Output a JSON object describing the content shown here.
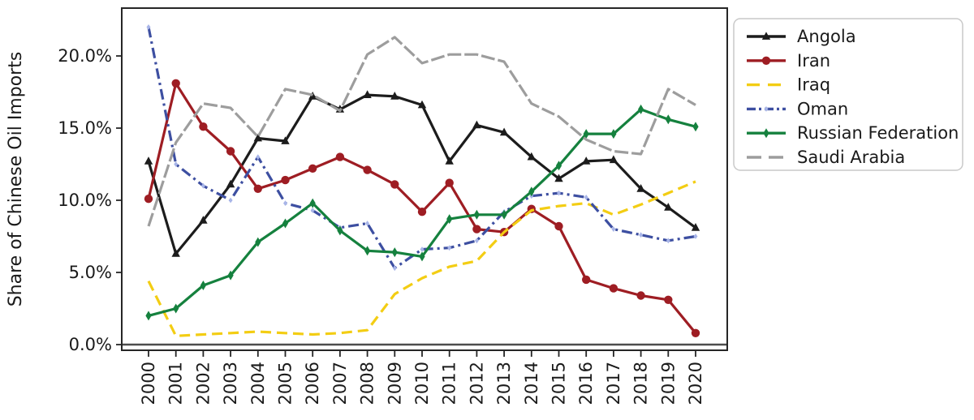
{
  "chart_data": {
    "type": "line",
    "title": "",
    "xlabel": "",
    "ylabel": "Share of Chinese Oil Imports",
    "x": [
      2000,
      2001,
      2002,
      2003,
      2004,
      2005,
      2006,
      2007,
      2008,
      2009,
      2010,
      2011,
      2012,
      2013,
      2014,
      2015,
      2016,
      2017,
      2018,
      2019,
      2020
    ],
    "ylim": [
      0,
      22.6
    ],
    "yticks": [
      0,
      5,
      10,
      15,
      20
    ],
    "y_tick_labels": [
      "0.0%",
      "5.0%",
      "10.0%",
      "15.0%",
      "20.0%"
    ],
    "grid": false,
    "zero_line": true,
    "legend_position": "outside-right",
    "series": [
      {
        "name": "Angola",
        "color": "#1c1c1c",
        "marker": "triangle",
        "dash": "solid",
        "values": [
          12.7,
          6.3,
          8.6,
          11.1,
          14.3,
          14.1,
          17.2,
          16.3,
          17.3,
          17.2,
          16.6,
          12.7,
          15.2,
          14.7,
          13.0,
          11.5,
          12.7,
          12.8,
          10.8,
          9.5,
          8.1
        ]
      },
      {
        "name": "Iran",
        "color": "#9e1d23",
        "marker": "circle",
        "dash": "solid",
        "values": [
          10.1,
          18.1,
          15.1,
          13.4,
          10.8,
          11.4,
          12.2,
          13.0,
          12.1,
          11.1,
          9.2,
          11.2,
          8.0,
          7.8,
          9.4,
          8.2,
          4.5,
          3.9,
          3.4,
          3.1,
          0.8
        ]
      },
      {
        "name": "Iraq",
        "color": "#f3cd13",
        "marker": "none",
        "dash": "dashed",
        "values": [
          4.4,
          0.6,
          0.7,
          0.8,
          0.9,
          0.8,
          0.7,
          0.8,
          1.0,
          3.5,
          4.6,
          5.4,
          5.8,
          7.8,
          9.3,
          9.6,
          9.8,
          9.0,
          9.7,
          10.5,
          11.3
        ]
      },
      {
        "name": "Oman",
        "color": "#3d4fa1",
        "marker": "small-diamond",
        "marker_color": "#a8b5e8",
        "dash": "dashdot",
        "values": [
          22.0,
          12.5,
          11.0,
          10.0,
          13.0,
          9.8,
          9.3,
          8.1,
          8.4,
          5.3,
          6.6,
          6.7,
          7.2,
          9.2,
          10.3,
          10.5,
          10.2,
          8.0,
          7.6,
          7.2,
          7.5
        ]
      },
      {
        "name": "Russian Federation",
        "color": "#15813e",
        "marker": "thin-diamond",
        "dash": "solid",
        "values": [
          2.0,
          2.5,
          4.1,
          4.8,
          7.1,
          8.4,
          9.8,
          7.9,
          6.5,
          6.4,
          6.1,
          8.7,
          9.0,
          9.0,
          10.6,
          12.4,
          14.6,
          14.6,
          16.3,
          15.6,
          15.1
        ]
      },
      {
        "name": "Saudi Arabia",
        "color": "#9d9d9d",
        "marker": "none",
        "dash": "long-dash",
        "values": [
          8.2,
          14.0,
          16.7,
          16.4,
          14.4,
          17.7,
          17.3,
          16.2,
          20.1,
          21.3,
          19.5,
          20.1,
          20.1,
          19.6,
          16.7,
          15.8,
          14.2,
          13.4,
          13.2,
          17.7,
          16.6
        ]
      }
    ],
    "colors": {
      "axis": "#262626",
      "zero_line": "#4d4d4d",
      "text": "#1a1a1a",
      "legend_border": "#c9c9c9",
      "background": "#ffffff"
    }
  }
}
